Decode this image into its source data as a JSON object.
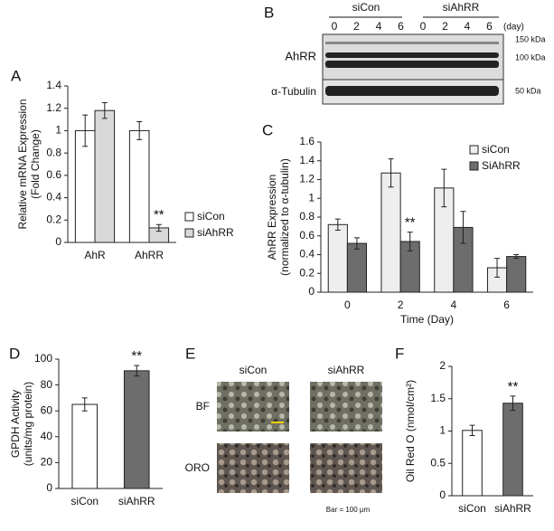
{
  "panel_labels": [
    "A",
    "B",
    "C",
    "D",
    "E",
    "F"
  ],
  "blot": {
    "groups": [
      "siCon",
      "siAhRR"
    ],
    "days": [
      "0",
      "2",
      "4",
      "6",
      "0",
      "2",
      "4",
      "6"
    ],
    "day_unit": "(day)",
    "rows": [
      "AhRR",
      "α-Tubulin"
    ],
    "markers": [
      "150 kDa",
      "100 kDa",
      "50 kDa"
    ]
  },
  "micrographs": {
    "columns": [
      "siCon",
      "siAhRR"
    ],
    "rows": [
      "BF",
      "ORO"
    ],
    "scale": "Bar = 100 μm"
  },
  "chart_data": [
    {
      "type": "bar",
      "categories": [
        "AhR",
        "AhRR"
      ],
      "ylabel": [
        "Relative mRNA Expression",
        "(Fold Change)"
      ],
      "series": [
        {
          "name": "siCon",
          "color": "#ffffff",
          "values": [
            1.0,
            1.0
          ],
          "errors": [
            0.14,
            0.08
          ],
          "significance": [
            null,
            null
          ]
        },
        {
          "name": "siAhRR",
          "color": "#d9d9d9",
          "values": [
            1.18,
            0.13
          ],
          "errors": [
            0.07,
            0.03
          ],
          "significance": [
            null,
            "**"
          ]
        }
      ],
      "ylim": [
        0,
        1.4
      ],
      "yticks": [
        0,
        0.2,
        0.4,
        0.6,
        0.8,
        1,
        1.2,
        1.4
      ],
      "legend": "right"
    },
    {
      "type": "bar",
      "categories": [
        "0",
        "2",
        "4",
        "6"
      ],
      "xlabel": "Time (Day)",
      "ylabel": [
        "AhRR Expression",
        "(normalized to α-tubulin)"
      ],
      "series": [
        {
          "name": "siCon",
          "color": "#eeeeee",
          "values": [
            0.72,
            1.27,
            1.11,
            0.26
          ],
          "errors": [
            0.06,
            0.15,
            0.2,
            0.1
          ],
          "significance": [
            null,
            null,
            null,
            null
          ]
        },
        {
          "name": "SiAhRR",
          "color": "#6d6d6d",
          "values": [
            0.52,
            0.54,
            0.69,
            0.38
          ],
          "errors": [
            0.06,
            0.1,
            0.17,
            0.02
          ],
          "significance": [
            null,
            "**",
            null,
            null
          ]
        }
      ],
      "ylim": [
        0,
        1.6
      ],
      "yticks": [
        0,
        0.2,
        0.4,
        0.6,
        0.8,
        1,
        1.2,
        1.4,
        1.6
      ],
      "legend": "upper right"
    },
    {
      "type": "bar",
      "categories": [
        "siCon",
        "siAhRR"
      ],
      "ylabel": [
        "GPDH Activity",
        "(units/mg protein)"
      ],
      "values": [
        65,
        91
      ],
      "errors": [
        5,
        4
      ],
      "colors": [
        "#ffffff",
        "#6d6d6d"
      ],
      "significance": [
        null,
        "**"
      ],
      "ylim": [
        0,
        100
      ],
      "yticks": [
        0,
        20,
        40,
        60,
        80,
        100
      ]
    },
    {
      "type": "bar",
      "categories": [
        "siCon",
        "siAhRR"
      ],
      "ylabel": [
        "Oil Red O (nmol/cm²)"
      ],
      "values": [
        1.01,
        1.43
      ],
      "errors": [
        0.08,
        0.11
      ],
      "colors": [
        "#ffffff",
        "#6d6d6d"
      ],
      "significance": [
        null,
        "**"
      ],
      "ylim": [
        0,
        2
      ],
      "yticks": [
        0,
        0.5,
        1,
        1.5,
        2
      ]
    }
  ]
}
